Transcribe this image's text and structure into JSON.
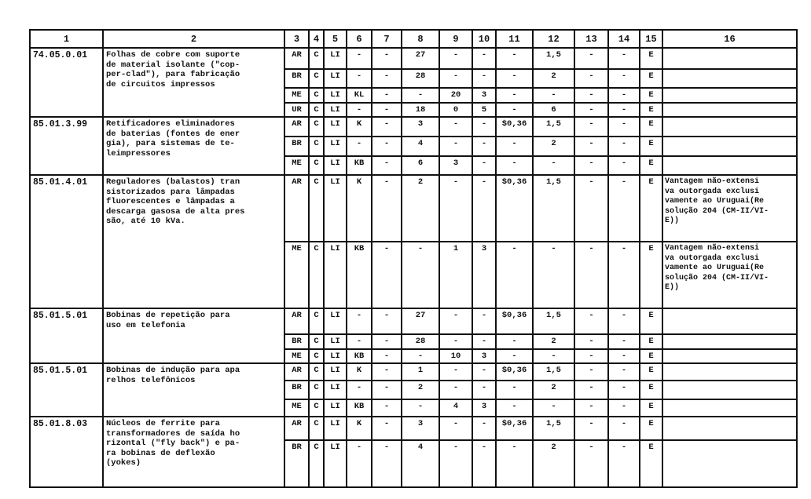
{
  "headers": [
    "1",
    "2",
    "3",
    "4",
    "5",
    "6",
    "7",
    "8",
    "9",
    "10",
    "11",
    "12",
    "13",
    "14",
    "15",
    "16"
  ],
  "groups": [
    {
      "code": "74.05.0.01",
      "description": "Folhas de cobre com suporte\nde material isolante (\"cop-\nper-clad\"), para fabricação\nde circuitos impressos",
      "rows": [
        [
          "AR",
          "C",
          "LI",
          "-",
          "-",
          "27",
          "-",
          "-",
          "-",
          "1,5",
          "-",
          "-",
          "E",
          ""
        ],
        [
          "BR",
          "C",
          "LI",
          "-",
          "-",
          "28",
          "-",
          "-",
          "-",
          "2",
          "-",
          "-",
          "E",
          ""
        ],
        [
          "ME",
          "C",
          "LI",
          "KL",
          "-",
          "-",
          "20",
          "3",
          "-",
          "-",
          "-",
          "-",
          "E",
          ""
        ],
        [
          "UR",
          "C",
          "LI",
          "-",
          "-",
          "18",
          "0",
          "5",
          "-",
          "6",
          "-",
          "-",
          "E",
          ""
        ]
      ]
    },
    {
      "code": "85.01.3.99",
      "description": "Retificadores eliminadores\nde baterias (fontes de ener\ngia), para sistemas de te-\nleimpressores",
      "rows": [
        [
          "AR",
          "C",
          "LI",
          "K",
          "-",
          "3",
          "-",
          "-",
          "$0,36",
          "1,5",
          "-",
          "-",
          "E",
          ""
        ],
        [
          "BR",
          "C",
          "LI",
          "-",
          "-",
          "4",
          "-",
          "-",
          "-",
          "2",
          "-",
          "-",
          "E",
          ""
        ],
        [
          "ME",
          "C",
          "LI",
          "KB",
          "-",
          "6",
          "3",
          "-",
          "-",
          "-",
          "-",
          "-",
          "E",
          ""
        ]
      ]
    },
    {
      "code": "85.01.4.01",
      "description": "Reguladores (balastos) tran\nsistorizados para lâmpadas\nfluorescentes e lâmpadas  a\ndescarga gasosa de alta pres\nsão, até 10 kVa.",
      "rows": [
        [
          "AR",
          "C",
          "LI",
          "K",
          "-",
          "2",
          "-",
          "-",
          "$0,36",
          "1,5",
          "-",
          "-",
          "E",
          "Vantagem não-extensi\nva outorgada exclusi\nvamente ao Uruguai(Re\nsolução 204 (CM-II/VI-\nE))"
        ],
        [
          "ME",
          "C",
          "LI",
          "KB",
          "-",
          "-",
          "1",
          "3",
          "-",
          "-",
          "-",
          "-",
          "E",
          "Vantagem não-extensi\nva outorgada exclusi\nvamente ao Uruguai(Re\nsolução 204 (CM-II/VI-\nE))"
        ]
      ]
    },
    {
      "code": "85.01.5.01",
      "description": "Bobinas de repetição para\nuso em telefonia",
      "rows": [
        [
          "AR",
          "C",
          "LI",
          "-",
          "-",
          "27",
          "-",
          "-",
          "$0,36",
          "1,5",
          "-",
          "-",
          "E",
          ""
        ],
        [
          "BR",
          "C",
          "LI",
          "-",
          "-",
          "28",
          "-",
          "-",
          "-",
          "2",
          "-",
          "-",
          "E",
          ""
        ],
        [
          "ME",
          "C",
          "LI",
          "KB",
          "-",
          "-",
          "10",
          "3",
          "-",
          "-",
          "-",
          "-",
          "E",
          ""
        ]
      ]
    },
    {
      "code": "85.01.5.01",
      "description": "Bobinas de indução para apa\nrelhos telefônicos",
      "rows": [
        [
          "AR",
          "C",
          "LI",
          "K",
          "-",
          "1",
          "-",
          "-",
          "$0,36",
          "1,5",
          "-",
          "-",
          "E",
          ""
        ],
        [
          "BR",
          "C",
          "LI",
          "-",
          "-",
          "2",
          "-",
          "-",
          "-",
          "2",
          "-",
          "-",
          "E",
          ""
        ],
        [
          "ME",
          "C",
          "LI",
          "KB",
          "-",
          "-",
          "4",
          "3",
          "-",
          "-",
          "-",
          "-",
          "E",
          ""
        ]
      ]
    },
    {
      "code": "85.01.8.03",
      "description": "Núcleos de ferrite para\ntransformadores de saída ho\nrizontal (\"fly back\") e pa-\nra bobinas de deflexão\n(yokes)",
      "rows": [
        [
          "AR",
          "C",
          "LI",
          "K",
          "-",
          "3",
          "-",
          "-",
          "$0,36",
          "1,5",
          "-",
          "-",
          "E",
          ""
        ],
        [
          "BR",
          "C",
          "LI",
          "-",
          "-",
          "4",
          "-",
          "-",
          "-",
          "2",
          "-",
          "-",
          "E",
          ""
        ]
      ]
    }
  ]
}
